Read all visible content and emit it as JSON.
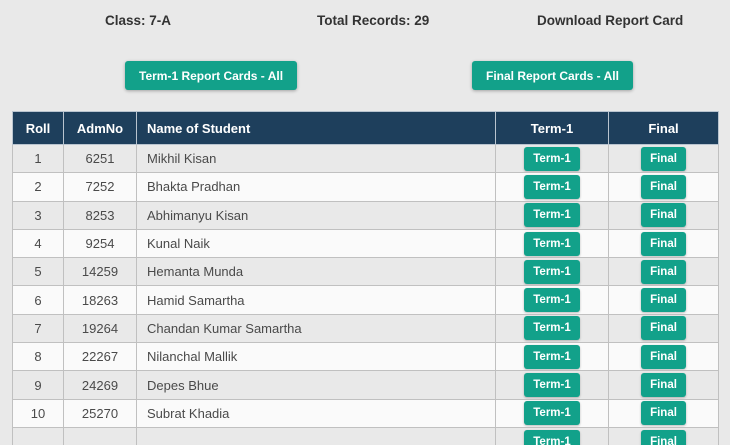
{
  "summary": {
    "class_label": "Class: 7-A",
    "total_records_label": "Total Records: 29",
    "download_label": "Download Report Card"
  },
  "actions": {
    "term1_all_button": "Term-1 Report Cards - All",
    "final_all_button": "Final Report Cards - All"
  },
  "table": {
    "columns": [
      "Roll",
      "AdmNo",
      "Name of Student",
      "Term-1",
      "Final"
    ],
    "row_button_labels": {
      "term1": "Term-1",
      "final": "Final"
    },
    "rows": [
      {
        "roll": "1",
        "admno": "6251",
        "name": "Mikhil Kisan"
      },
      {
        "roll": "2",
        "admno": "7252",
        "name": "Bhakta Pradhan"
      },
      {
        "roll": "3",
        "admno": "8253",
        "name": "Abhimanyu Kisan"
      },
      {
        "roll": "4",
        "admno": "9254",
        "name": "Kunal Naik"
      },
      {
        "roll": "5",
        "admno": "14259",
        "name": "Hemanta Munda"
      },
      {
        "roll": "6",
        "admno": "18263",
        "name": "Hamid Samartha"
      },
      {
        "roll": "7",
        "admno": "19264",
        "name": "Chandan Kumar Samartha"
      },
      {
        "roll": "8",
        "admno": "22267",
        "name": "Nilanchal Mallik"
      },
      {
        "roll": "9",
        "admno": "24269",
        "name": "Depes Bhue"
      },
      {
        "roll": "10",
        "admno": "25270",
        "name": "Subrat Khadia"
      }
    ],
    "partial_next_row_visible": true
  },
  "colors": {
    "accent_teal": "#12a18a",
    "header_navy": "#1e3f5c",
    "row_stripe_gray": "#e9e9e9",
    "row_stripe_light": "#fafafa",
    "grid_border": "#c0c0c0",
    "page_background": "#e9e9e9"
  }
}
